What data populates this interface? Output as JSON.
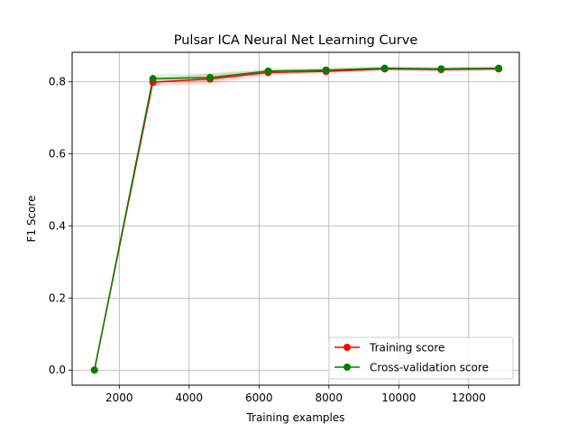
{
  "chart_data": {
    "type": "line",
    "title": "Pulsar ICA Neural Net Learning Curve",
    "xlabel": "Training examples",
    "ylabel": "F1 Score",
    "xlim": [
      650,
      13450
    ],
    "ylim": [
      -0.042,
      0.882
    ],
    "xticks": [
      2000,
      4000,
      6000,
      8000,
      10000,
      12000
    ],
    "yticks": [
      0.0,
      0.2,
      0.4,
      0.6,
      0.8
    ],
    "ytick_labels": [
      "0.0",
      "0.2",
      "0.4",
      "0.6",
      "0.8"
    ],
    "grid": true,
    "legend_position": "lower-right",
    "x": [
      1288,
      2962,
      4599,
      6262,
      7917,
      9597,
      11213,
      12860
    ],
    "series": [
      {
        "name": "Training score",
        "color": "#ff0000",
        "values": [
          0.0,
          0.799,
          0.808,
          0.826,
          0.829,
          0.836,
          0.834,
          0.836
        ],
        "band": [
          [
            0.0,
            0.0
          ],
          [
            0.789,
            0.809
          ],
          [
            0.793,
            0.823
          ],
          [
            0.819,
            0.833
          ],
          [
            0.823,
            0.835
          ],
          [
            0.831,
            0.841
          ],
          [
            0.829,
            0.839
          ],
          [
            0.831,
            0.841
          ]
        ]
      },
      {
        "name": "Cross-validation score",
        "color": "#008000",
        "values": [
          0.0,
          0.809,
          0.812,
          0.83,
          0.833,
          0.838,
          0.836,
          0.838
        ],
        "band": [
          [
            0.0,
            0.0
          ],
          [
            0.797,
            0.821
          ],
          [
            0.8,
            0.824
          ],
          [
            0.823,
            0.837
          ],
          [
            0.826,
            0.84
          ],
          [
            0.832,
            0.844
          ],
          [
            0.83,
            0.842
          ],
          [
            0.832,
            0.844
          ]
        ]
      }
    ]
  }
}
